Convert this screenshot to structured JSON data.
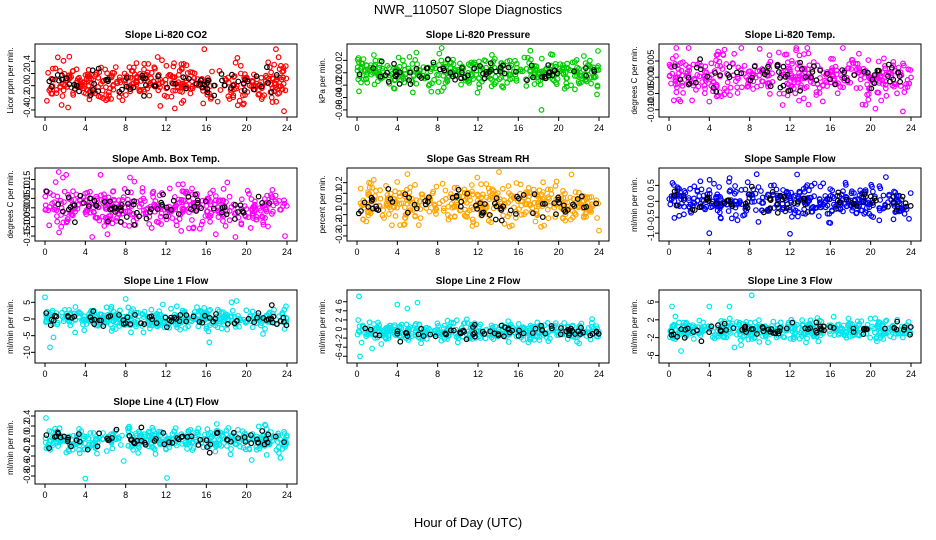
{
  "figure": {
    "title": "NWR_110507  Slope Diagnostics",
    "xlabel": "Hour of Day (UTC)"
  },
  "chart_data": [
    {
      "type": "scatter",
      "title": "Slope Li-820 CO2",
      "ylabel": "Licor ppm per min.",
      "color": "#ff0000",
      "xlim": [
        0,
        24
      ],
      "x_ticks": [
        0,
        4,
        8,
        12,
        16,
        20,
        24
      ],
      "ylim": [
        -0.45,
        0.62
      ],
      "y_ticks": [
        -0.4,
        -0.2,
        0.0,
        0.2,
        0.4
      ],
      "y_tick_labels": [
        "-0.4",
        "-0.2",
        "0.0",
        "0.2",
        "0.4"
      ],
      "center": 0.04,
      "spread": 0.16,
      "outliers": [
        [
          15.8,
          0.6
        ],
        [
          22.9,
          0.6
        ],
        [
          23.7,
          -0.42
        ]
      ]
    },
    {
      "type": "scatter",
      "title": "Slope Li-820 Pressure",
      "ylabel": "kPa per min.",
      "color": "#00cc00",
      "xlim": [
        0,
        24
      ],
      "x_ticks": [
        0,
        4,
        8,
        12,
        16,
        20,
        24
      ],
      "ylim": [
        -0.065,
        0.04
      ],
      "y_ticks": [
        -0.06,
        -0.04,
        -0.02,
        0.0,
        0.02
      ],
      "y_tick_labels": [
        "-0.06",
        "-0.04",
        "-0.02",
        "0.00",
        "0.02"
      ],
      "center": 0.0,
      "spread": 0.012,
      "outliers": [
        [
          0.2,
          -0.03
        ],
        [
          18.3,
          -0.06
        ],
        [
          23.8,
          -0.035
        ]
      ]
    },
    {
      "type": "scatter",
      "title": "Slope Li-820 Temp.",
      "ylabel": "degrees C per min.",
      "color": "#ff00ff",
      "xlim": [
        0,
        24
      ],
      "x_ticks": [
        0,
        4,
        8,
        12,
        16,
        20,
        24
      ],
      "ylim": [
        -0.011,
        0.009
      ],
      "y_ticks": [
        -0.01,
        -0.005,
        0.0,
        0.005
      ],
      "y_tick_labels": [
        "-0.010",
        "-0.005",
        "0.000",
        "0.005"
      ],
      "center": 0.0005,
      "spread": 0.0035,
      "outliers": [
        [
          4.0,
          -0.0075
        ],
        [
          5.5,
          0.0085
        ],
        [
          19.5,
          -0.0085
        ],
        [
          23.2,
          -0.0105
        ]
      ]
    },
    {
      "type": "scatter",
      "title": "Slope Amb. Box Temp.",
      "ylabel": "degrees C per min.",
      "color": "#ff00ff",
      "xlim": [
        0,
        24
      ],
      "x_ticks": [
        0,
        4,
        8,
        12,
        16,
        20,
        24
      ],
      "ylim": [
        -0.155,
        0.19
      ],
      "y_ticks": [
        -0.15,
        -0.1,
        -0.05,
        0.0,
        0.05,
        0.1,
        0.15
      ],
      "y_tick_labels": [
        "-0.15",
        "-0.10",
        "-0.05",
        "0.00",
        "0.05",
        "0.10",
        "0.15"
      ],
      "center": 0.0,
      "spread": 0.06,
      "outliers": [
        [
          2.1,
          0.175
        ],
        [
          6.2,
          -0.14
        ],
        [
          23.8,
          -0.15
        ]
      ]
    },
    {
      "type": "scatter",
      "title": "Slope Gas Stream RH",
      "ylabel": "percent per min.",
      "color": "#ffa500",
      "xlim": [
        0,
        24
      ],
      "x_ticks": [
        0,
        4,
        8,
        12,
        16,
        20,
        24
      ],
      "ylim": [
        -0.31,
        0.3
      ],
      "y_ticks": [
        -0.3,
        -0.2,
        -0.1,
        0.0,
        0.1,
        0.2
      ],
      "y_tick_labels": [
        "-0.3",
        "-0.2",
        "-0.1",
        "0.0",
        "0.1",
        "0.2"
      ],
      "center": 0.0,
      "spread": 0.09,
      "outliers": [
        [
          1.2,
          0.2
        ],
        [
          5.0,
          0.28
        ],
        [
          24.0,
          -0.25
        ]
      ]
    },
    {
      "type": "scatter",
      "title": "Slope Sample Flow",
      "ylabel": "ml/min per min.",
      "color": "#0000ff",
      "xlim": [
        0,
        24
      ],
      "x_ticks": [
        0,
        4,
        8,
        12,
        16,
        20,
        24
      ],
      "ylim": [
        -1.12,
        0.92
      ],
      "y_ticks": [
        -1.0,
        -0.5,
        0.0,
        0.5
      ],
      "y_tick_labels": [
        "-1.0",
        "-0.5",
        "0.0",
        "0.5"
      ],
      "center": 0.0,
      "spread": 0.26,
      "outliers": [
        [
          4.0,
          -1.0
        ],
        [
          8.7,
          0.85
        ],
        [
          12.0,
          -1.02
        ],
        [
          23.8,
          -0.55
        ]
      ]
    },
    {
      "type": "scatter",
      "title": "Slope Line 1 Flow",
      "ylabel": "ml/min per min.",
      "color": "#00e5ee",
      "xlim": [
        0,
        24
      ],
      "x_ticks": [
        0,
        4,
        8,
        12,
        16,
        20,
        24
      ],
      "ylim": [
        -12,
        7.5
      ],
      "y_ticks": [
        -10,
        -5,
        0,
        5
      ],
      "y_tick_labels": [
        "-10",
        "-5",
        "0",
        "5"
      ],
      "center": 0.0,
      "spread": 1.6,
      "outliers": [
        [
          0.0,
          6.5
        ],
        [
          0.5,
          -8.5
        ],
        [
          8.0,
          6.0
        ],
        [
          18.5,
          5.0
        ],
        [
          19.0,
          5.4
        ],
        [
          16.3,
          -7.0
        ]
      ]
    },
    {
      "type": "scatter",
      "title": "Slope Line 2 Flow",
      "ylabel": "ml/min per min.",
      "color": "#00e5ee",
      "xlim": [
        0,
        24
      ],
      "x_ticks": [
        0,
        4,
        8,
        12,
        16,
        20,
        24
      ],
      "ylim": [
        -6.6,
        7.7
      ],
      "y_ticks": [
        -6,
        -4,
        -2,
        0,
        2,
        4,
        6
      ],
      "y_tick_labels": [
        "-6",
        "-4",
        "-2",
        "0",
        "2",
        "4",
        "6"
      ],
      "center": -0.6,
      "spread": 1.0,
      "outliers": [
        [
          0.2,
          7.2
        ],
        [
          0.3,
          -6.0
        ],
        [
          5.0,
          4.5
        ],
        [
          6.0,
          5.8
        ],
        [
          4.0,
          5.4
        ],
        [
          1.5,
          -4.3
        ]
      ]
    },
    {
      "type": "scatter",
      "title": "Slope Line 3 Flow",
      "ylabel": "ml/min per min.",
      "color": "#00e5ee",
      "xlim": [
        0,
        24
      ],
      "x_ticks": [
        0,
        4,
        8,
        12,
        16,
        20,
        24
      ],
      "ylim": [
        -6.8,
        7.8
      ],
      "y_ticks": [
        -6,
        -2,
        2,
        6
      ],
      "y_tick_labels": [
        "-6",
        "-2",
        "2",
        "6"
      ],
      "center": -0.3,
      "spread": 1.1,
      "outliers": [
        [
          0.3,
          5.0
        ],
        [
          8.2,
          7.5
        ],
        [
          4.0,
          5.0
        ],
        [
          6.0,
          5.0
        ],
        [
          6.5,
          -4.2
        ],
        [
          1.2,
          -5.0
        ]
      ]
    },
    {
      "type": "scatter",
      "title": "Slope Line 4 (LT) Flow",
      "ylabel": "ml/min per min.",
      "color": "#00e5ee",
      "xlim": [
        0,
        24
      ],
      "x_ticks": [
        0,
        4,
        8,
        12,
        16,
        20,
        24
      ],
      "ylim": [
        -0.88,
        0.42
      ],
      "y_ticks": [
        -0.8,
        -0.6,
        -0.4,
        -0.2,
        0.0,
        0.2,
        0.4
      ],
      "y_tick_labels": [
        "-0.8",
        "-0.6",
        "-0.4",
        "-0.2",
        "0.0",
        "0.2",
        "0.4"
      ],
      "center": -0.08,
      "spread": 0.12,
      "outliers": [
        [
          4.0,
          -0.85
        ],
        [
          12.1,
          -0.84
        ],
        [
          7.8,
          -0.5
        ],
        [
          20.5,
          -0.48
        ],
        [
          0.1,
          0.36
        ]
      ]
    }
  ]
}
